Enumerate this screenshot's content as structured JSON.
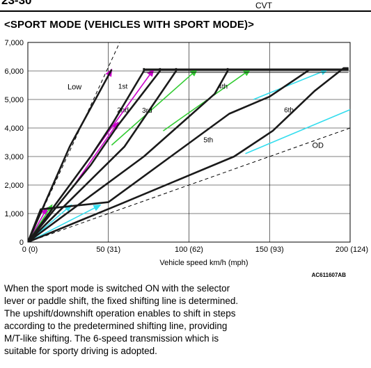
{
  "header": {
    "page_number": "23-30",
    "section": "CVT"
  },
  "heading": "<SPORT MODE (VEHICLES WITH SPORT MODE)>",
  "figure_code": "AC611607AB",
  "body_text": "When the sport mode is switched ON with the selector lever or paddle shift, the fixed shifting line is determined. The upshift/downshift operation enables to shift in steps according to the predetermined shifting line, providing M/T-like shifting. The 6-speed transmission which is suitable for sporty driving is adopted.",
  "chart_data": {
    "type": "line",
    "title": "",
    "xlabel": "Vehicle speed  km/h (mph)",
    "ylabel": "",
    "xlim": [
      0,
      200
    ],
    "ylim": [
      0,
      7000
    ],
    "x_ticks": [
      {
        "value": 0,
        "label": "0 (0)"
      },
      {
        "value": 50,
        "label": "50 (31)"
      },
      {
        "value": 100,
        "label": "100 (62)"
      },
      {
        "value": 150,
        "label": "150 (93)"
      },
      {
        "value": 200,
        "label": "200 (124)"
      }
    ],
    "y_ticks": [
      {
        "value": 0,
        "label": "0"
      },
      {
        "value": 1000,
        "label": "1,000"
      },
      {
        "value": 2000,
        "label": "2,000"
      },
      {
        "value": 3000,
        "label": "3,000"
      },
      {
        "value": 4000,
        "label": "4,000"
      },
      {
        "value": 5000,
        "label": "5,000"
      },
      {
        "value": 6000,
        "label": "6,000"
      },
      {
        "value": 7000,
        "label": "7,000"
      }
    ],
    "grid": true,
    "colors": {
      "shift_line": "#1a1a1a",
      "magenta": "#cc00cc",
      "green": "#33cc33",
      "cyan": "#33ddee",
      "dashed": "#000000"
    },
    "dashed_lines": [
      {
        "points": [
          [
            0,
            0
          ],
          [
            57,
            7000
          ]
        ]
      },
      {
        "points": [
          [
            0,
            0
          ],
          [
            200,
            4000
          ]
        ]
      }
    ],
    "series": [
      {
        "name": "Low",
        "points": [
          [
            0,
            0
          ],
          [
            26,
            3350
          ],
          [
            52,
            6050
          ]
        ]
      },
      {
        "name": "1st",
        "points": [
          [
            0,
            0
          ],
          [
            39,
            3000
          ],
          [
            53,
            4200
          ],
          [
            72,
            6000
          ],
          [
            72,
            6100
          ]
        ]
      },
      {
        "name": "2nd",
        "points": [
          [
            0,
            0
          ],
          [
            39,
            2700
          ],
          [
            56,
            4100
          ],
          [
            82,
            6000
          ],
          [
            82,
            6100
          ]
        ]
      },
      {
        "name": "3rd",
        "points": [
          [
            0,
            0
          ],
          [
            60,
            3350
          ],
          [
            92,
            6000
          ],
          [
            92,
            6100
          ]
        ]
      },
      {
        "name": "4th",
        "points": [
          [
            0,
            0
          ],
          [
            72,
            3000
          ],
          [
            116,
            5200
          ],
          [
            124,
            6000
          ],
          [
            124,
            6100
          ]
        ]
      },
      {
        "name": "5th",
        "points": [
          [
            0,
            0
          ],
          [
            8,
            1150
          ],
          [
            50,
            1400
          ],
          [
            125,
            4500
          ],
          [
            150,
            5100
          ],
          [
            175,
            6050
          ],
          [
            199,
            6050
          ]
        ]
      },
      {
        "name": "6th",
        "points": [
          [
            0,
            0
          ],
          [
            56,
            1300
          ],
          [
            128,
            3000
          ],
          [
            152,
            3900
          ],
          [
            178,
            5300
          ],
          [
            196,
            6100
          ],
          [
            199,
            6100
          ]
        ]
      },
      {
        "name": "OD",
        "points": [
          [
            0,
            0
          ],
          [
            200,
            4000
          ]
        ]
      }
    ],
    "top_line": [
      [
        72,
        6050
      ],
      [
        199,
        6050
      ]
    ],
    "arrows": [
      {
        "color": "magenta",
        "from": [
          26,
          3350
        ],
        "to": [
          52,
          6050
        ]
      },
      {
        "color": "magenta",
        "from": [
          0,
          0
        ],
        "to": [
          12,
          1200
        ]
      },
      {
        "color": "magenta",
        "from": [
          39,
          3000
        ],
        "to": [
          78,
          6050
        ]
      },
      {
        "color": "magenta",
        "from": [
          30,
          2100
        ],
        "to": [
          56,
          4200
        ]
      },
      {
        "color": "green",
        "from": [
          0,
          0
        ],
        "to": [
          15,
          1300
        ]
      },
      {
        "color": "green",
        "from": [
          52,
          3400
        ],
        "to": [
          105,
          6050
        ]
      },
      {
        "color": "green",
        "from": [
          84,
          3900
        ],
        "to": [
          138,
          6050
        ]
      },
      {
        "color": "cyan",
        "from": [
          0,
          0
        ],
        "to": [
          27,
          1300
        ]
      },
      {
        "color": "cyan",
        "from": [
          0,
          0
        ],
        "to": [
          45,
          1300
        ]
      },
      {
        "color": "cyan",
        "from": [
          140,
          5000
        ],
        "to": [
          186,
          6050
        ]
      },
      {
        "color": "cyan",
        "from": [
          135,
          3100
        ],
        "to": [
          215,
          5000
        ]
      }
    ],
    "labels": [
      {
        "text": "Low",
        "x": 29,
        "y": 5350
      },
      {
        "text": "1st",
        "x": 59,
        "y": 5380
      },
      {
        "text": "2nd",
        "x": 59,
        "y": 4550
      },
      {
        "text": "3rd",
        "x": 74,
        "y": 4540
      },
      {
        "text": "4th",
        "x": 121,
        "y": 5380
      },
      {
        "text": "5th",
        "x": 112,
        "y": 3500
      },
      {
        "text": "6th",
        "x": 162,
        "y": 4550
      },
      {
        "text": "OD",
        "x": 180,
        "y": 3300
      }
    ]
  }
}
